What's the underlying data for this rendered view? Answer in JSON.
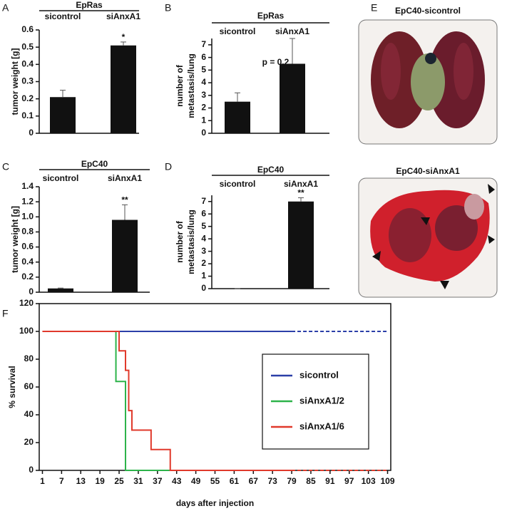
{
  "chart_data": [
    {
      "type": "bar",
      "panel": "A",
      "title": "EpRas",
      "ylabel": "tumor weight [g]",
      "categories": [
        "sicontrol",
        "siAnxA1"
      ],
      "values": [
        0.21,
        0.51
      ],
      "errors": [
        0.04,
        0.02
      ],
      "color": "#111111",
      "annotation": "*",
      "ylim": [
        0,
        0.6
      ],
      "yticks": [
        0,
        0.1,
        0.2,
        0.3,
        0.4,
        0.5,
        0.6
      ]
    },
    {
      "type": "bar",
      "panel": "B",
      "title": "EpRas",
      "ylabel": [
        "number of",
        "metastasis/lung"
      ],
      "categories": [
        "sicontrol",
        "siAnxA1"
      ],
      "values": [
        2.5,
        5.5
      ],
      "errors": [
        0.7,
        2.0
      ],
      "color": "#111111",
      "annotation": "p = 0.2",
      "ylim": [
        0,
        7.5
      ],
      "yticks": [
        0,
        1,
        2,
        3,
        4,
        5,
        6,
        7
      ]
    },
    {
      "type": "bar",
      "panel": "C",
      "title": "EpC40",
      "ylabel": "tumor weight [g]",
      "categories": [
        "sicontrol",
        "siAnxA1"
      ],
      "values": [
        0.05,
        0.96
      ],
      "errors": [
        0.005,
        0.2
      ],
      "color": "#111111",
      "annotation": "**",
      "ylim": [
        0,
        1.4
      ],
      "yticks": [
        0,
        0.2,
        0.4,
        0.6,
        0.8,
        {
          "value": 1,
          "label": "1.0"
        },
        1.2,
        1.4
      ]
    },
    {
      "type": "bar",
      "panel": "D",
      "title": "EpC40",
      "ylabel": [
        "number of",
        "metastasis/lung"
      ],
      "categories": [
        "sicontrol",
        "siAnxA1"
      ],
      "values": [
        0,
        7
      ],
      "errors": [
        0,
        0.3
      ],
      "color": "#111111",
      "annotation": "**",
      "ylim": [
        0,
        7.5
      ],
      "yticks": [
        0,
        1,
        2,
        3,
        4,
        5,
        6,
        7
      ]
    },
    {
      "type": "line",
      "panel": "F",
      "xlabel": "days after injection",
      "ylabel": "% survival",
      "xlim": [
        0,
        110
      ],
      "xticks": [
        1,
        7,
        13,
        19,
        25,
        31,
        37,
        43,
        49,
        55,
        61,
        67,
        73,
        79,
        85,
        91,
        97,
        103,
        109
      ],
      "ylim": [
        0,
        120
      ],
      "yticks": [
        0,
        20,
        40,
        60,
        80,
        100,
        120
      ],
      "dashed_from": 79,
      "series": [
        {
          "name": "sicontrol",
          "color": "#2b3fa8",
          "x": [
            1,
            79,
            109
          ],
          "values": [
            100,
            100,
            100
          ]
        },
        {
          "name": "siAnxA1/2",
          "color": "#2db34a",
          "x": [
            1,
            24,
            24,
            27,
            27,
            79,
            109
          ],
          "values": [
            100,
            100,
            64,
            64,
            0,
            0,
            0
          ]
        },
        {
          "name": "siAnxA1/6",
          "color": "#e0392b",
          "x": [
            1,
            25,
            25,
            27,
            27,
            28,
            28,
            29,
            29,
            35,
            35,
            41,
            41,
            79,
            109
          ],
          "values": [
            100,
            100,
            86,
            86,
            72,
            72,
            43,
            43,
            29,
            29,
            15,
            15,
            0,
            0,
            0
          ]
        }
      ]
    }
  ],
  "images": {
    "panel": "E",
    "top_label": "EpC40-sicontrol",
    "bottom_label": "EpC40-siAnxA1"
  }
}
